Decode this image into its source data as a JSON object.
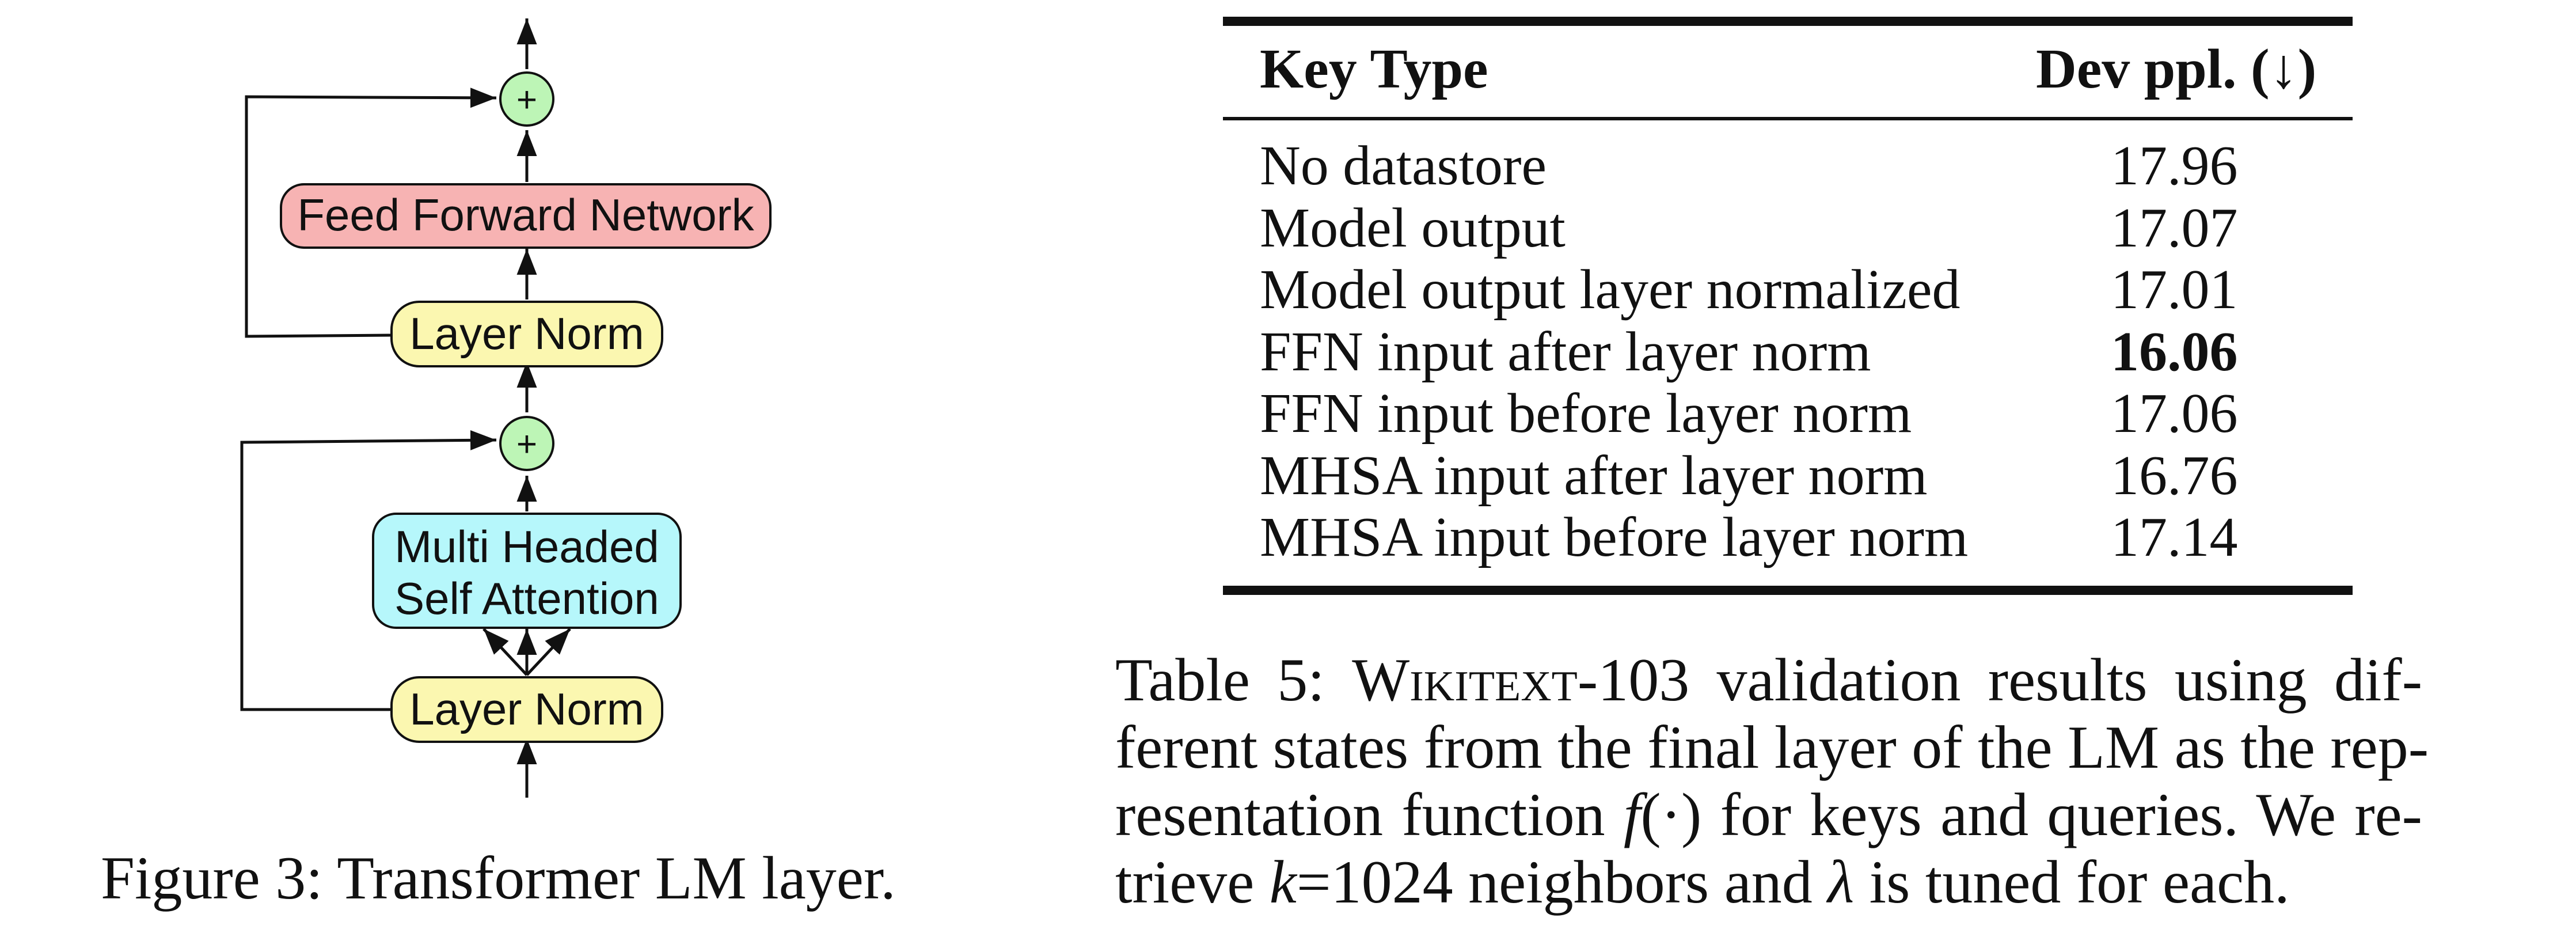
{
  "figure": {
    "boxes": {
      "ffn": "Feed Forward Network",
      "layer_norm_top": "Layer Norm",
      "mhsa_line1": "Multi Headed",
      "mhsa_line2": "Self Attention",
      "layer_norm_bottom": "Layer Norm"
    },
    "plus_symbol": "+",
    "colors": {
      "ffn": "#f7b3b3",
      "layer_norm": "#fbf7b0",
      "mhsa": "#b6f7fb",
      "plus": "#bdf5b6"
    },
    "caption": "Figure 3: Transformer LM layer."
  },
  "table": {
    "headers": {
      "key_type": "Key Type",
      "dev_ppl": "Dev ppl. (↓)"
    },
    "rows": [
      {
        "key": "No datastore",
        "ppl": "17.96"
      },
      {
        "key": "Model output",
        "ppl": "17.07"
      },
      {
        "key": "Model output layer normalized",
        "ppl": "17.01"
      },
      {
        "key": "FFN input after layer norm",
        "ppl": "16.06"
      },
      {
        "key": "FFN input before layer norm",
        "ppl": "17.06"
      },
      {
        "key": "MHSA input after layer norm",
        "ppl": "16.76"
      },
      {
        "key": "MHSA input before layer norm",
        "ppl": "17.14"
      }
    ],
    "caption": {
      "l1_prefix": "Table 5: ",
      "l1_sc": "Wikitext",
      "l1_rest": "-103 validation results using dif-",
      "l2": "ferent states from the final layer of the LM as the rep-",
      "l3_a": "resentation function ",
      "l3_f": "f",
      "l3_arg": "(·)",
      "l3_b": " for keys and queries. We re-",
      "l4_a": "trieve ",
      "l4_k": "k",
      "l4_b": "=1024 neighbors and ",
      "l4_lambda": "λ",
      "l4_c": " is tuned for each."
    }
  }
}
